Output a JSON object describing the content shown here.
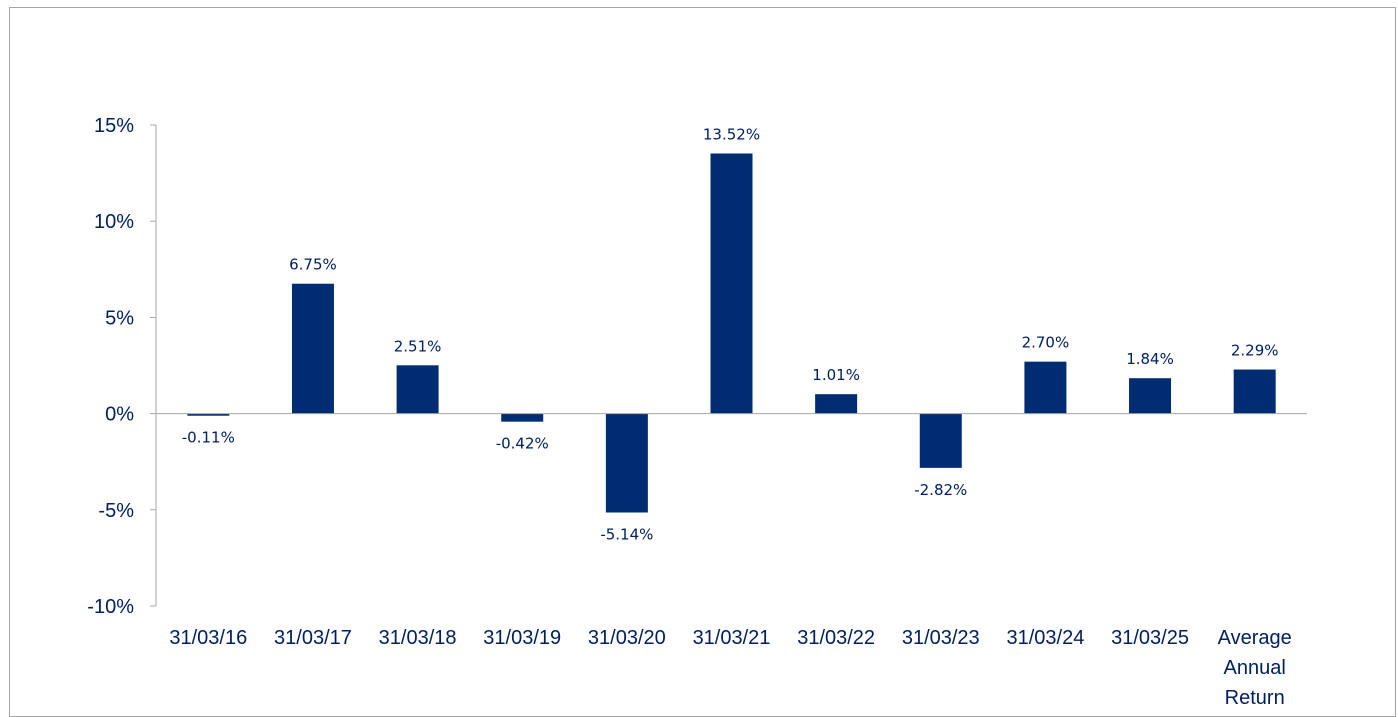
{
  "chart_data": {
    "type": "bar",
    "categories": [
      [
        "31/03/16"
      ],
      [
        "31/03/17"
      ],
      [
        "31/03/18"
      ],
      [
        "31/03/19"
      ],
      [
        "31/03/20"
      ],
      [
        "31/03/21"
      ],
      [
        "31/03/22"
      ],
      [
        "31/03/23"
      ],
      [
        "31/03/24"
      ],
      [
        "31/03/25"
      ],
      [
        "Average",
        "Annual",
        "Return"
      ]
    ],
    "values": [
      -0.11,
      6.75,
      2.51,
      -0.42,
      -5.14,
      13.52,
      1.01,
      -2.82,
      2.7,
      1.84,
      2.29
    ],
    "data_labels": [
      "-0.11%",
      "6.75%",
      "2.51%",
      "-0.42%",
      "-5.14%",
      "13.52%",
      "1.01%",
      "-2.82%",
      "2.70%",
      "1.84%",
      "2.29%"
    ],
    "y_ticks": [
      15,
      10,
      5,
      0,
      -5,
      -10
    ],
    "y_tick_labels": [
      "15%",
      "10%",
      "5%",
      "0%",
      "-5%",
      "-10%"
    ],
    "ylim": [
      -10,
      15
    ],
    "title": "",
    "xlabel": "",
    "ylabel": "",
    "grid": false,
    "legend": "none",
    "bar_color": "#002D72",
    "text_color": "#002060",
    "axis_color": "#a6a6a6"
  }
}
